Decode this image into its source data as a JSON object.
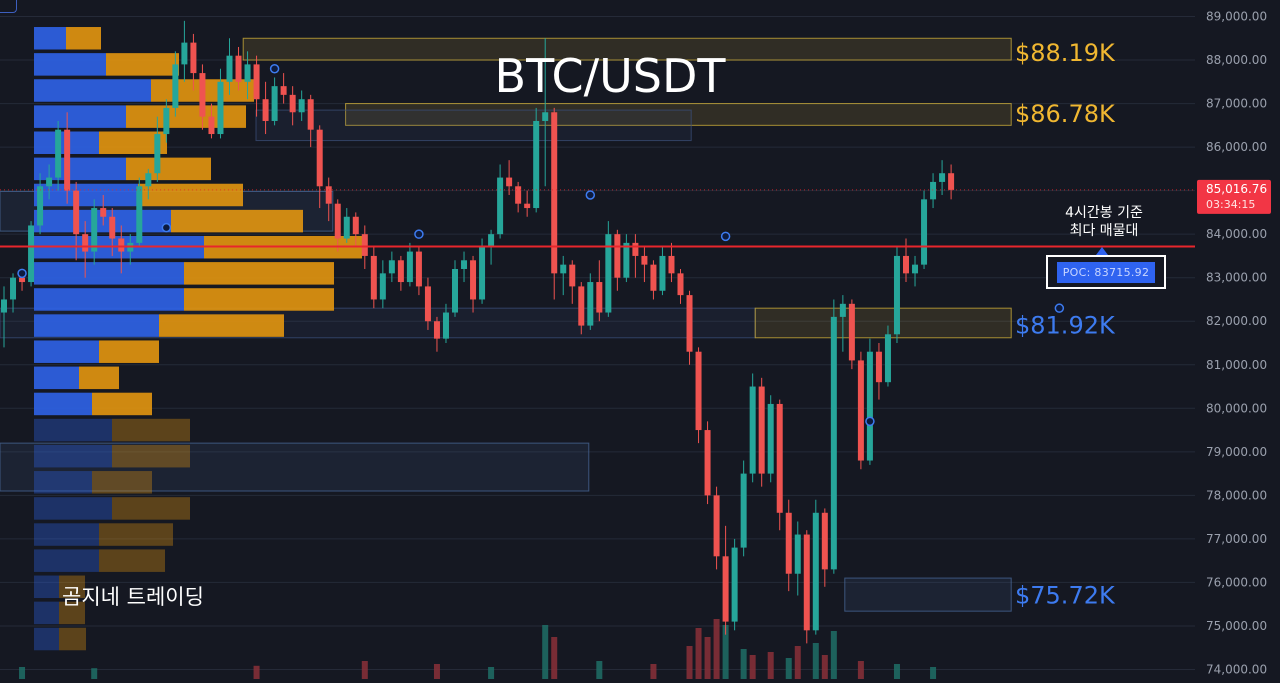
{
  "chart_data": {
    "type": "candlestick",
    "title": "BTC/USDT",
    "y_axis": {
      "ticks": [
        "89,000.00",
        "88,000.00",
        "87,000.00",
        "86,000.00",
        "85,000.00",
        "84,000.00",
        "83,000.00",
        "82,000.00",
        "81,000.00",
        "80,000.00",
        "79,000.00",
        "78,000.00",
        "77,000.00",
        "76,000.00",
        "75,000.00",
        "74,000.00"
      ],
      "tick_values": [
        89000,
        88000,
        87000,
        86000,
        85000,
        84000,
        83000,
        82000,
        81000,
        80000,
        79000,
        78000,
        77000,
        76000,
        75000,
        74000
      ],
      "ylim": [
        73800,
        89400
      ]
    },
    "last_price": {
      "price": 85016.76,
      "label": "85,016.76",
      "countdown": "03:34:15",
      "color": "#f23645"
    },
    "poc": {
      "price": 83715.92,
      "label": "POC: 83715.92",
      "note_line1": "4시간봉 기준",
      "note_line2": "최다 매물대"
    },
    "levels": [
      {
        "price": 88190,
        "label": "$88.19K",
        "color": "#f0b731"
      },
      {
        "price": 86780,
        "label": "$86.78K",
        "color": "#f0b731"
      },
      {
        "price": 81920,
        "label": "$81.92K",
        "color": "#3d7bf0"
      },
      {
        "price": 75720,
        "label": "$75.72K",
        "color": "#3d7bf0"
      }
    ],
    "volume_profile": [
      {
        "price": 88500,
        "buy": 32,
        "sell": 35
      },
      {
        "price": 87900,
        "buy": 72,
        "sell": 73
      },
      {
        "price": 87300,
        "buy": 117,
        "sell": 103
      },
      {
        "price": 86700,
        "buy": 92,
        "sell": 120
      },
      {
        "price": 86100,
        "buy": 65,
        "sell": 68
      },
      {
        "price": 85500,
        "buy": 92,
        "sell": 85
      },
      {
        "price": 84900,
        "buy": 104,
        "sell": 105
      },
      {
        "price": 84300,
        "buy": 137,
        "sell": 132
      },
      {
        "price": 83700,
        "buy": 170,
        "sell": 158
      },
      {
        "price": 83100,
        "buy": 150,
        "sell": 150
      },
      {
        "price": 82500,
        "buy": 150,
        "sell": 150
      },
      {
        "price": 81900,
        "buy": 125,
        "sell": 125
      },
      {
        "price": 81300,
        "buy": 65,
        "sell": 60
      },
      {
        "price": 80700,
        "buy": 45,
        "sell": 40
      },
      {
        "price": 80100,
        "buy": 58,
        "sell": 60
      },
      {
        "price": 79500,
        "buy": 78,
        "sell": 78
      },
      {
        "price": 78900,
        "buy": 78,
        "sell": 78
      },
      {
        "price": 78300,
        "buy": 58,
        "sell": 60
      },
      {
        "price": 77700,
        "buy": 78,
        "sell": 78
      },
      {
        "price": 77100,
        "buy": 65,
        "sell": 74
      },
      {
        "price": 76500,
        "buy": 65,
        "sell": 66
      },
      {
        "price": 75900,
        "buy": 25,
        "sell": 26
      },
      {
        "price": 75300,
        "buy": 25,
        "sell": 26
      },
      {
        "price": 74700,
        "buy": 25,
        "sell": 27
      }
    ],
    "zones": [
      {
        "from": 88000,
        "to": 88500,
        "color": "#d4b33a",
        "start": 0.19,
        "end": 0.79
      },
      {
        "from": 86500,
        "to": 87000,
        "color": "#d4b33a",
        "start": 0.27,
        "end": 0.79
      },
      {
        "from": 86150,
        "to": 86850,
        "color": "#3b4f7a",
        "start": 0.2,
        "end": 0.54
      },
      {
        "from": 84070,
        "to": 84980,
        "color": "#4a6a9a",
        "start": 0.0,
        "end": 0.26
      },
      {
        "from": 81620,
        "to": 82300,
        "color": "#3b4f7a",
        "start": 0.0,
        "end": 0.59
      },
      {
        "from": 81620,
        "to": 82300,
        "color": "#d4b33a",
        "start": 0.59,
        "end": 0.79
      },
      {
        "from": 78100,
        "to": 79200,
        "color": "#4a6a9a",
        "start": 0.0,
        "end": 0.46
      },
      {
        "from": 75340,
        "to": 76100,
        "color": "#4a6a9a",
        "start": 0.66,
        "end": 0.79
      }
    ],
    "candles": [
      [
        82200,
        82800,
        81400,
        82500
      ],
      [
        82500,
        83100,
        82200,
        83000
      ],
      [
        83000,
        83200,
        82700,
        82900
      ],
      [
        82900,
        84300,
        82800,
        84200
      ],
      [
        84200,
        85400,
        84000,
        85100
      ],
      [
        85100,
        85600,
        84800,
        85300
      ],
      [
        85300,
        86600,
        85000,
        86400
      ],
      [
        86400,
        86800,
        84700,
        85000
      ],
      [
        85000,
        85200,
        83400,
        84000
      ],
      [
        84000,
        84300,
        83000,
        83600
      ],
      [
        83600,
        84800,
        83300,
        84600
      ],
      [
        84600,
        84900,
        84200,
        84400
      ],
      [
        84400,
        84600,
        83500,
        83900
      ],
      [
        83900,
        84200,
        83100,
        83600
      ],
      [
        83600,
        84000,
        83300,
        83800
      ],
      [
        83800,
        85300,
        83700,
        85100
      ],
      [
        85100,
        85500,
        84800,
        85400
      ],
      [
        85400,
        86700,
        85200,
        86300
      ],
      [
        86300,
        87100,
        86100,
        86900
      ],
      [
        86900,
        88200,
        86700,
        87900
      ],
      [
        87900,
        88900,
        87500,
        88400
      ],
      [
        88400,
        88600,
        87300,
        87700
      ],
      [
        87700,
        87900,
        86400,
        86700
      ],
      [
        86700,
        87000,
        86200,
        86300
      ],
      [
        86300,
        87800,
        86200,
        87500
      ],
      [
        87500,
        88500,
        87200,
        88100
      ],
      [
        88100,
        88300,
        87300,
        87500
      ],
      [
        87500,
        88200,
        87100,
        87900
      ],
      [
        87900,
        88100,
        86700,
        87100
      ],
      [
        87100,
        87500,
        86300,
        86600
      ],
      [
        86600,
        87600,
        86500,
        87400
      ],
      [
        87400,
        87700,
        87000,
        87200
      ],
      [
        87200,
        87400,
        86500,
        86800
      ],
      [
        86800,
        87300,
        86600,
        87100
      ],
      [
        87100,
        87200,
        86000,
        86400
      ],
      [
        86400,
        86500,
        84600,
        85100
      ],
      [
        85100,
        85300,
        84300,
        84700
      ],
      [
        84700,
        84800,
        83600,
        83900
      ],
      [
        83900,
        84600,
        83800,
        84400
      ],
      [
        84400,
        84500,
        83700,
        84000
      ],
      [
        84000,
        84200,
        83200,
        83500
      ],
      [
        83500,
        83700,
        82300,
        82500
      ],
      [
        82500,
        83400,
        82300,
        83100
      ],
      [
        83100,
        83600,
        82900,
        83400
      ],
      [
        83400,
        83500,
        82700,
        82900
      ],
      [
        82900,
        83800,
        82800,
        83600
      ],
      [
        83600,
        83700,
        82600,
        82800
      ],
      [
        82800,
        83000,
        81800,
        82000
      ],
      [
        82000,
        82100,
        81300,
        81600
      ],
      [
        81600,
        82400,
        81500,
        82200
      ],
      [
        82200,
        83400,
        82100,
        83200
      ],
      [
        83200,
        83600,
        82900,
        83400
      ],
      [
        83400,
        83500,
        82200,
        82500
      ],
      [
        82500,
        83900,
        82400,
        83700
      ],
      [
        83700,
        84100,
        83300,
        84000
      ],
      [
        84000,
        85600,
        83900,
        85300
      ],
      [
        85300,
        85700,
        84900,
        85100
      ],
      [
        85100,
        85200,
        84500,
        84700
      ],
      [
        84700,
        85000,
        84400,
        84600
      ],
      [
        84600,
        86900,
        84500,
        86600
      ],
      [
        86600,
        88500,
        85100,
        86800
      ],
      [
        86800,
        86900,
        82500,
        83100
      ],
      [
        83100,
        83500,
        82600,
        83300
      ],
      [
        83300,
        83400,
        82400,
        82800
      ],
      [
        82800,
        82900,
        81700,
        81900
      ],
      [
        81900,
        83100,
        81800,
        82900
      ],
      [
        82900,
        83400,
        82000,
        82200
      ],
      [
        82200,
        84300,
        82100,
        84000
      ],
      [
        84000,
        84100,
        82700,
        83000
      ],
      [
        83000,
        84000,
        82900,
        83800
      ],
      [
        83800,
        84000,
        83000,
        83500
      ],
      [
        83500,
        83700,
        82900,
        83300
      ],
      [
        83300,
        83400,
        82500,
        82700
      ],
      [
        82700,
        83700,
        82600,
        83500
      ],
      [
        83500,
        83800,
        82900,
        83100
      ],
      [
        83100,
        83200,
        82400,
        82600
      ],
      [
        82600,
        82700,
        81000,
        81300
      ],
      [
        81300,
        81400,
        79200,
        79500
      ],
      [
        79500,
        79700,
        77800,
        78000
      ],
      [
        78000,
        78200,
        76300,
        76600
      ],
      [
        76600,
        77300,
        74800,
        75100
      ],
      [
        75100,
        77000,
        74900,
        76800
      ],
      [
        76800,
        78800,
        76600,
        78500
      ],
      [
        78500,
        80800,
        78300,
        80500
      ],
      [
        80500,
        80700,
        78200,
        78500
      ],
      [
        78500,
        80300,
        78300,
        80100
      ],
      [
        80100,
        80200,
        77200,
        77600
      ],
      [
        77600,
        77900,
        75800,
        76200
      ],
      [
        76200,
        77400,
        75700,
        77100
      ],
      [
        77100,
        77200,
        74600,
        74900
      ],
      [
        74900,
        77900,
        74800,
        77600
      ],
      [
        77600,
        77700,
        75900,
        76300
      ],
      [
        76300,
        82500,
        76200,
        82100
      ],
      [
        82100,
        82600,
        81300,
        82400
      ],
      [
        82400,
        82500,
        80900,
        81100
      ],
      [
        81100,
        81300,
        78600,
        78800
      ],
      [
        78800,
        81600,
        78700,
        81300
      ],
      [
        81300,
        81500,
        80200,
        80600
      ],
      [
        80600,
        81900,
        80500,
        81700
      ],
      [
        81700,
        83700,
        81500,
        83500
      ],
      [
        83500,
        83900,
        82900,
        83100
      ],
      [
        83100,
        83500,
        82800,
        83300
      ],
      [
        83300,
        85000,
        83200,
        84800
      ],
      [
        84800,
        85400,
        84600,
        85200
      ],
      [
        85200,
        85700,
        84900,
        85400
      ],
      [
        85400,
        85600,
        84800,
        85016.76
      ]
    ],
    "volume_bars": [
      {
        "i": 2,
        "h": 0.2,
        "up": true
      },
      {
        "i": 10,
        "h": 0.18,
        "up": true
      },
      {
        "i": 28,
        "h": 0.22,
        "up": false
      },
      {
        "i": 40,
        "h": 0.3,
        "up": false
      },
      {
        "i": 48,
        "h": 0.25,
        "up": false
      },
      {
        "i": 54,
        "h": 0.2,
        "up": true
      },
      {
        "i": 60,
        "h": 0.9,
        "up": true
      },
      {
        "i": 61,
        "h": 0.7,
        "up": false
      },
      {
        "i": 66,
        "h": 0.3,
        "up": true
      },
      {
        "i": 72,
        "h": 0.25,
        "up": false
      },
      {
        "i": 76,
        "h": 0.55,
        "up": false
      },
      {
        "i": 77,
        "h": 0.85,
        "up": false
      },
      {
        "i": 78,
        "h": 0.7,
        "up": false
      },
      {
        "i": 79,
        "h": 1.0,
        "up": false
      },
      {
        "i": 80,
        "h": 0.9,
        "up": true
      },
      {
        "i": 82,
        "h": 0.5,
        "up": true
      },
      {
        "i": 83,
        "h": 0.4,
        "up": false
      },
      {
        "i": 85,
        "h": 0.45,
        "up": false
      },
      {
        "i": 87,
        "h": 0.35,
        "up": true
      },
      {
        "i": 88,
        "h": 0.55,
        "up": false
      },
      {
        "i": 90,
        "h": 0.6,
        "up": true
      },
      {
        "i": 91,
        "h": 0.4,
        "up": false
      },
      {
        "i": 92,
        "h": 0.8,
        "up": true
      },
      {
        "i": 95,
        "h": 0.3,
        "up": false
      },
      {
        "i": 99,
        "h": 0.25,
        "up": true
      },
      {
        "i": 103,
        "h": 0.2,
        "up": true
      }
    ],
    "markers": [
      {
        "i": 2,
        "price": 83100
      },
      {
        "i": 30,
        "price": 87800
      },
      {
        "i": 18,
        "price": 84150
      },
      {
        "i": 46,
        "price": 84000
      },
      {
        "i": 65,
        "price": 84900
      },
      {
        "i": 80,
        "price": 83950
      },
      {
        "i": 96,
        "price": 79700
      },
      {
        "i": 117,
        "price": 82300
      }
    ]
  },
  "overlay": {
    "watermark": "곰지네 트레이딩"
  },
  "colors": {
    "up": "#26a69a",
    "down": "#ef5350",
    "buy": "#2f63e8",
    "sell": "#e3960f",
    "grid": "#252a38",
    "axis_text": "#9aa0ad"
  }
}
